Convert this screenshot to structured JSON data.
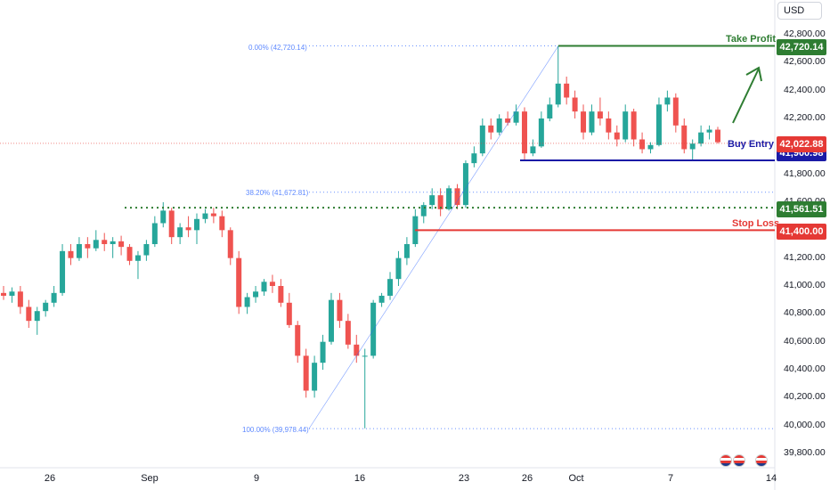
{
  "currency": "USD",
  "price_axis": [
    "42,800.00",
    "42,600.00",
    "42,400.00",
    "42,200.00",
    "41,800.00",
    "41,600.00",
    "41,200.00",
    "41,000.00",
    "40,800.00",
    "40,600.00",
    "40,400.00",
    "40,200.00",
    "40,000.00",
    "39,800.00"
  ],
  "time_axis": [
    "26",
    "Sep",
    "9",
    "16",
    "23",
    "26",
    "Oct",
    "7",
    "14"
  ],
  "levels": {
    "take_profit": {
      "label": "Take Profit",
      "price": "42,720.14",
      "color": "#2e7d32"
    },
    "buy_entry": {
      "label": "Buy Entry",
      "price": "41,900.98",
      "color": "#1a1aa6"
    },
    "current": {
      "price": "42,022.88",
      "color": "#e53935"
    },
    "support": {
      "price": "41,561.51",
      "color": "#2e7d32"
    },
    "stop_loss": {
      "label": "Stop Loss",
      "price": "41,400.00",
      "color": "#e53935"
    }
  },
  "fib": {
    "top": "0.00% (42,720.14)",
    "mid": "38.20% (41,672.81)",
    "bottom": "100.00% (39,978.44)"
  },
  "colors": {
    "up": "#26a69a",
    "down": "#ef5350"
  },
  "chart_data": {
    "type": "candlestick",
    "y_range": [
      39700,
      42900
    ],
    "candles": [
      [
        40950,
        41000,
        40900,
        40930
      ],
      [
        40930,
        40990,
        40880,
        40960
      ],
      [
        40960,
        41000,
        40800,
        40850
      ],
      [
        40850,
        40900,
        40700,
        40750
      ],
      [
        40750,
        40850,
        40650,
        40820
      ],
      [
        40820,
        40900,
        40780,
        40880
      ],
      [
        40880,
        41000,
        40850,
        40950
      ],
      [
        40950,
        41300,
        40930,
        41250
      ],
      [
        41250,
        41300,
        41150,
        41200
      ],
      [
        41200,
        41350,
        41180,
        41300
      ],
      [
        41300,
        41350,
        41200,
        41270
      ],
      [
        41270,
        41400,
        41250,
        41330
      ],
      [
        41330,
        41380,
        41250,
        41300
      ],
      [
        41300,
        41350,
        41200,
        41320
      ],
      [
        41320,
        41360,
        41220,
        41280
      ],
      [
        41280,
        41300,
        41150,
        41180
      ],
      [
        41180,
        41250,
        41050,
        41220
      ],
      [
        41220,
        41330,
        41180,
        41300
      ],
      [
        41300,
        41500,
        41280,
        41450
      ],
      [
        41450,
        41600,
        41420,
        41540
      ],
      [
        41540,
        41560,
        41300,
        41350
      ],
      [
        41350,
        41450,
        41300,
        41420
      ],
      [
        41420,
        41500,
        41350,
        41400
      ],
      [
        41400,
        41520,
        41300,
        41480
      ],
      [
        41480,
        41550,
        41450,
        41520
      ],
      [
        41520,
        41560,
        41450,
        41500
      ],
      [
        41500,
        41540,
        41350,
        41400
      ],
      [
        41400,
        41420,
        41150,
        41200
      ],
      [
        41200,
        41250,
        40800,
        40850
      ],
      [
        40850,
        40950,
        40800,
        40920
      ],
      [
        40920,
        41000,
        40880,
        40960
      ],
      [
        40960,
        41050,
        40930,
        41030
      ],
      [
        41030,
        41080,
        40950,
        41000
      ],
      [
        41000,
        41050,
        40850,
        40880
      ],
      [
        40880,
        40950,
        40700,
        40720
      ],
      [
        40720,
        40750,
        40450,
        40500
      ],
      [
        40500,
        40550,
        40200,
        40250
      ],
      [
        40250,
        40500,
        40200,
        40450
      ],
      [
        40450,
        40650,
        40400,
        40600
      ],
      [
        40600,
        40950,
        40580,
        40900
      ],
      [
        40900,
        40950,
        40700,
        40750
      ],
      [
        40750,
        40800,
        40550,
        40580
      ],
      [
        40580,
        40650,
        40450,
        40500
      ],
      [
        40500,
        40550,
        39980,
        40500
      ],
      [
        40500,
        40900,
        40480,
        40880
      ],
      [
        40880,
        40950,
        40850,
        40930
      ],
      [
        40930,
        41100,
        40900,
        41050
      ],
      [
        41050,
        41250,
        41000,
        41200
      ],
      [
        41200,
        41350,
        41150,
        41300
      ],
      [
        41300,
        41550,
        41280,
        41500
      ],
      [
        41500,
        41600,
        41450,
        41580
      ],
      [
        41580,
        41700,
        41550,
        41650
      ],
      [
        41650,
        41700,
        41500,
        41550
      ],
      [
        41550,
        41720,
        41540,
        41700
      ],
      [
        41700,
        41730,
        41550,
        41580
      ],
      [
        41580,
        41900,
        41560,
        41880
      ],
      [
        41880,
        42000,
        41850,
        41950
      ],
      [
        41950,
        42200,
        41930,
        42150
      ],
      [
        42150,
        42200,
        42050,
        42100
      ],
      [
        42100,
        42230,
        42080,
        42200
      ],
      [
        42200,
        42250,
        42150,
        42170
      ],
      [
        42170,
        42300,
        42150,
        42250
      ],
      [
        42250,
        42280,
        41900,
        41950
      ],
      [
        41950,
        42050,
        41930,
        42000
      ],
      [
        42000,
        42250,
        41990,
        42200
      ],
      [
        42200,
        42350,
        42180,
        42300
      ],
      [
        42300,
        42720,
        42280,
        42450
      ],
      [
        42450,
        42500,
        42300,
        42350
      ],
      [
        42350,
        42400,
        42200,
        42250
      ],
      [
        42250,
        42300,
        42050,
        42100
      ],
      [
        42100,
        42300,
        42080,
        42250
      ],
      [
        42250,
        42350,
        42150,
        42200
      ],
      [
        42200,
        42250,
        42050,
        42100
      ],
      [
        42100,
        42150,
        42000,
        42050
      ],
      [
        42050,
        42300,
        42030,
        42250
      ],
      [
        42250,
        42270,
        42000,
        42050
      ],
      [
        42050,
        42100,
        41950,
        41980
      ],
      [
        41980,
        42030,
        41950,
        42010
      ],
      [
        42010,
        42350,
        42000,
        42300
      ],
      [
        42300,
        42400,
        42250,
        42350
      ],
      [
        42350,
        42380,
        42100,
        42150
      ],
      [
        42150,
        42200,
        41950,
        41980
      ],
      [
        41980,
        42050,
        41900,
        42020
      ],
      [
        42020,
        42150,
        42000,
        42100
      ],
      [
        42100,
        42150,
        42050,
        42120
      ],
      [
        42120,
        42140,
        42020,
        42030
      ]
    ]
  }
}
